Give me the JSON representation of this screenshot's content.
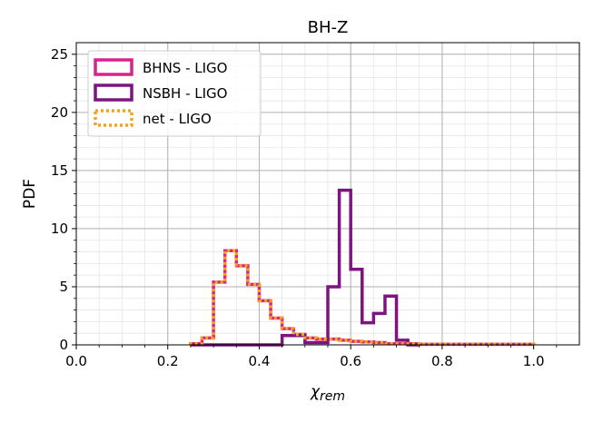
{
  "chart_data": {
    "type": "step-histogram",
    "title": "BH-Z",
    "xlabel": "χ",
    "xlabel_sub": "rem",
    "ylabel": "PDF",
    "xlim": [
      0.0,
      1.1
    ],
    "ylim": [
      0,
      26
    ],
    "xticks": [
      0.0,
      0.2,
      0.4,
      0.6,
      0.8,
      1.0
    ],
    "xtick_labels": [
      "0.0",
      "0.2",
      "0.4",
      "0.6",
      "0.8",
      "1.0"
    ],
    "yticks": [
      0,
      5,
      10,
      15,
      20,
      25
    ],
    "ytick_labels": [
      "0",
      "5",
      "10",
      "15",
      "20",
      "25"
    ],
    "grid": true,
    "minor_grid": true,
    "legend_position": "top-left",
    "colors": {
      "bhns": "#d6248c",
      "nsbh": "#7d1480",
      "net": "#f5a31a",
      "grid": "#b0b0b0",
      "minor_grid": "#e6e6e6"
    },
    "series": [
      {
        "name": "BHNS - LIGO",
        "style": "solid",
        "edges": [
          0.25,
          0.275,
          0.3,
          0.325,
          0.35,
          0.375,
          0.4,
          0.425,
          0.45,
          0.475,
          0.5,
          0.525,
          0.55,
          0.575,
          0.6,
          0.625,
          0.65,
          0.675,
          0.7,
          0.725,
          0.75,
          0.775,
          0.8,
          0.825,
          0.85,
          0.875,
          0.9,
          0.925,
          0.95,
          0.975,
          1.0
        ],
        "values": [
          0.1,
          0.6,
          5.4,
          8.1,
          6.8,
          5.2,
          3.8,
          2.3,
          1.4,
          0.9,
          0.6,
          0.5,
          0.5,
          0.4,
          0.3,
          0.25,
          0.2,
          0.1,
          0.1,
          0.1,
          0.05,
          0.05,
          0.05,
          0.05,
          0.05,
          0.05,
          0.05,
          0.05,
          0.05,
          0.05
        ]
      },
      {
        "name": "NSBH - LIGO",
        "style": "solid",
        "edges": [
          0.25,
          0.275,
          0.3,
          0.325,
          0.35,
          0.375,
          0.4,
          0.425,
          0.45,
          0.475,
          0.5,
          0.525,
          0.55,
          0.575,
          0.6,
          0.625,
          0.65,
          0.675,
          0.7,
          0.725,
          0.75
        ],
        "values": [
          0.0,
          0.0,
          0.0,
          0.0,
          0.0,
          0.0,
          0.0,
          0.0,
          0.8,
          0.8,
          0.2,
          0.2,
          5.0,
          13.3,
          6.5,
          1.9,
          2.7,
          4.2,
          0.4,
          0.0
        ]
      },
      {
        "name": "net - LIGO",
        "style": "dotted",
        "edges": [
          0.25,
          0.275,
          0.3,
          0.325,
          0.35,
          0.375,
          0.4,
          0.425,
          0.45,
          0.475,
          0.5,
          0.525,
          0.55,
          0.575,
          0.6,
          0.625,
          0.65,
          0.675,
          0.7,
          0.725,
          0.75,
          0.775,
          0.8,
          0.825,
          0.85,
          0.875,
          0.9,
          0.925,
          0.95,
          0.975,
          1.0
        ],
        "values": [
          0.1,
          0.6,
          5.4,
          8.1,
          6.8,
          5.2,
          3.8,
          2.3,
          1.4,
          0.9,
          0.6,
          0.5,
          0.5,
          0.4,
          0.3,
          0.25,
          0.2,
          0.1,
          0.1,
          0.1,
          0.05,
          0.05,
          0.05,
          0.05,
          0.05,
          0.05,
          0.05,
          0.05,
          0.05,
          0.05
        ]
      }
    ]
  }
}
